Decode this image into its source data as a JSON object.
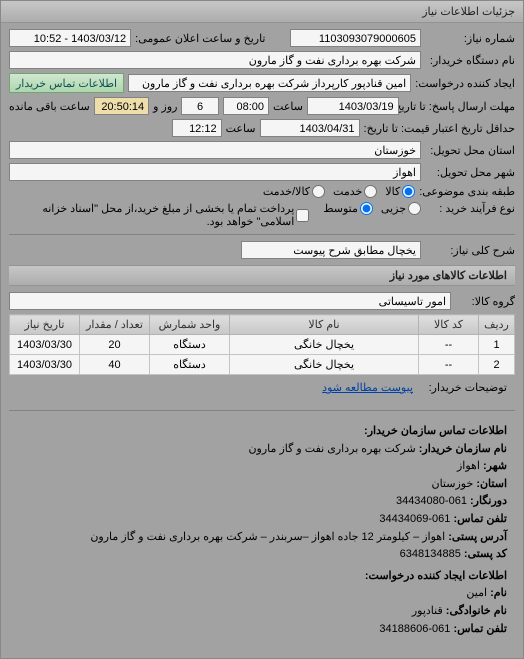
{
  "palette": {
    "panel_bg": "#a9a9a9",
    "titlebar_grad_top": "#cfcfcf",
    "titlebar_grad_bottom": "#b5b5b5",
    "field_bg": "#ffffff",
    "border": "#888888",
    "btn_green_grad_top": "#d9f2d9",
    "btn_green_grad_bottom": "#b5e0b5",
    "link": "#0044aa"
  },
  "titlebar": "جزئیات اطلاعات نیاز",
  "need_no_label": "شماره نیاز:",
  "need_no": "1103093079000605",
  "announce_label": "تاریخ و ساعت اعلان عمومی:",
  "announce_value": "1403/03/12 - 10:52",
  "buyer_org_label": "نام دستگاه خریدار:",
  "buyer_org": "شرکت بهره برداری نفت و گاز مارون",
  "requester_label": "ایجاد کننده درخواست:",
  "requester": "امین قنادپور کارپرداز شرکت بهره برداری نفت و گاز مارون",
  "contact_btn": "اطلاعات تماس خریدار",
  "deadline_label": "مهلت ارسال پاسخ: تا تاریخ:",
  "deadline_date": "1403/03/19",
  "time_label": "ساعت",
  "deadline_time": "08:00",
  "remain_days": "6",
  "remain_days_label": "روز و",
  "remain_time": "20:50:14",
  "remain_suffix": "ساعت باقی مانده",
  "credit_label": "حداقل تاریخ اعتبار قیمت: تا تاریخ:",
  "credit_date": "1403/04/31",
  "credit_time": "12:12",
  "province_label": "استان محل تحویل:",
  "province": "خوزستان",
  "city_label": "شهر محل تحویل:",
  "city": "اهواز",
  "subject_type_label": "طبقه بندی موضوعی:",
  "subject_radios": {
    "goods": "کالا",
    "service": "خدمت",
    "both": "کالا/خدمت"
  },
  "subject_selected": "goods",
  "process_label": "نوع فرآیند خرید :",
  "process_radios": {
    "small": "جزیی",
    "medium": "متوسط"
  },
  "process_selected": "medium",
  "process_note": "پرداخت تمام یا بخشی از مبلغ خرید،از محل \"اسناد خزانه اسلامی\" خواهد بود.",
  "need_title_label": "شرح کلی نیاز:",
  "need_title": "یخچال مطابق شرح پیوست",
  "items_section": "اطلاعات کالاهای مورد نیاز",
  "group_label": "گروه کالا:",
  "group_value": "امور تاسیساتی",
  "table": {
    "columns": [
      "ردیف",
      "کد کالا",
      "نام کالا",
      "واحد شمارش",
      "تعداد / مقدار",
      "تاریخ نیاز"
    ],
    "rows": [
      [
        "1",
        "--",
        "یخچال خانگی",
        "دستگاه",
        "20",
        "1403/03/30"
      ],
      [
        "2",
        "--",
        "یخچال خانگی",
        "دستگاه",
        "40",
        "1403/03/30"
      ]
    ],
    "col_widths": [
      "36px",
      "60px",
      "auto",
      "80px",
      "70px",
      "70px"
    ]
  },
  "buyer_notes_label": "توضیحات خریدار:",
  "attach_btn": "پیوست مطالعه شود",
  "contact_header": "اطلاعات تماس سازمان خریدار:",
  "contact": {
    "org_label": "نام سازمان خریدار:",
    "org": "شرکت بهره برداری نفت و گاز مارون",
    "city_label": "شهر:",
    "city": "اهواز",
    "province_label": "استان:",
    "province": "خوزستان",
    "fax_label": "دورنگار:",
    "fax": "061-34434080",
    "phone_label": "تلفن تماس:",
    "phone": "061-34434069",
    "addr_label": "آدرس پستی:",
    "addr": "اهواز – کیلومتر 12 جاده اهواز –سربندر – شرکت بهره برداری نفت و گاز مارون",
    "post_label": "کد پستی:",
    "post": "6348134885"
  },
  "requester_header": "اطلاعات ایجاد کننده درخواست:",
  "requester_info": {
    "fname_label": "نام:",
    "fname": "امین",
    "lname_label": "نام خانوادگی:",
    "lname": "قنادپور",
    "phone_label": "تلفن تماس:",
    "phone": "061-34188606"
  }
}
